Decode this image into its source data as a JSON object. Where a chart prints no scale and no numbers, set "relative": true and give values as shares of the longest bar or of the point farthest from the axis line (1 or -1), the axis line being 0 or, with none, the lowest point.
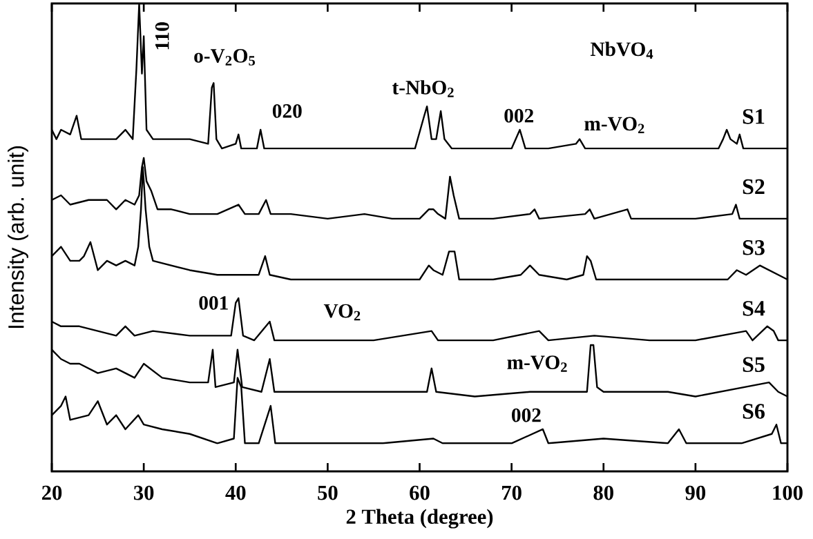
{
  "chart_data": {
    "type": "line",
    "relative": true,
    "xlabel": "2 Theta (degree)",
    "ylabel": "Intensity (arb. unit)",
    "xlim": [
      20,
      100
    ],
    "xticks": [
      20,
      30,
      40,
      50,
      60,
      70,
      80,
      90,
      100
    ],
    "annotations": [
      "110",
      "o-V$_{2}$O$_{5}$",
      "020",
      "t-NbO$_{2}$",
      "002",
      "m-VO$_{2}$",
      "NbVO$_{4}$",
      "001",
      "VO$_{2}$",
      "m-VO$_{2}$",
      "002"
    ],
    "series": [
      {
        "name": "S1",
        "color": "#000000",
        "x": [
          20,
          20.5,
          21,
          22,
          22.7,
          23.2,
          25,
          27,
          28,
          28.8,
          29.2,
          29.5,
          29.8,
          30.0,
          30.3,
          31,
          33,
          35,
          37,
          37.4,
          37.6,
          37.9,
          38.5,
          40.0,
          40.3,
          40.6,
          42.3,
          42.7,
          43.1,
          46,
          50,
          55,
          59.5,
          60.5,
          60.8,
          61.3,
          61.8,
          62.3,
          62.7,
          63.5,
          66,
          70,
          70.9,
          71.5,
          74,
          77,
          77.4,
          78,
          82,
          88,
          92.5,
          93.0,
          93.4,
          93.8,
          94.5,
          94.8,
          95.2,
          97,
          100
        ],
        "values": [
          0.73,
          0.71,
          0.73,
          0.72,
          0.76,
          0.71,
          0.71,
          0.71,
          0.73,
          0.71,
          0.86,
          1.0,
          0.85,
          0.93,
          0.73,
          0.71,
          0.71,
          0.71,
          0.7,
          0.82,
          0.83,
          0.71,
          0.69,
          0.7,
          0.72,
          0.69,
          0.69,
          0.73,
          0.69,
          0.69,
          0.69,
          0.69,
          0.69,
          0.76,
          0.78,
          0.71,
          0.71,
          0.77,
          0.71,
          0.69,
          0.69,
          0.69,
          0.73,
          0.69,
          0.69,
          0.7,
          0.71,
          0.69,
          0.69,
          0.69,
          0.69,
          0.71,
          0.73,
          0.71,
          0.7,
          0.72,
          0.69,
          0.69,
          0.69
        ]
      },
      {
        "name": "S2",
        "color": "#000000",
        "x": [
          20,
          21,
          22,
          24,
          26,
          27,
          28,
          29,
          29.5,
          29.8,
          30.0,
          30.3,
          30.8,
          31.5,
          33,
          35,
          38,
          40.3,
          41,
          42.5,
          43.3,
          43.8,
          46,
          50,
          54,
          57,
          60,
          61,
          61.5,
          62,
          62.8,
          63.3,
          63.7,
          64.3,
          68,
          72,
          72.5,
          73,
          78,
          78.5,
          79,
          82.6,
          83,
          90,
          94,
          94.4,
          94.8,
          100
        ],
        "values": [
          0.58,
          0.59,
          0.57,
          0.58,
          0.58,
          0.56,
          0.58,
          0.57,
          0.59,
          0.65,
          0.67,
          0.62,
          0.6,
          0.56,
          0.56,
          0.55,
          0.55,
          0.57,
          0.55,
          0.55,
          0.58,
          0.55,
          0.55,
          0.54,
          0.55,
          0.54,
          0.54,
          0.56,
          0.56,
          0.55,
          0.54,
          0.63,
          0.59,
          0.54,
          0.54,
          0.55,
          0.56,
          0.54,
          0.55,
          0.56,
          0.54,
          0.56,
          0.54,
          0.54,
          0.55,
          0.57,
          0.54,
          0.54
        ]
      },
      {
        "name": "S3",
        "color": "#000000",
        "x": [
          20,
          21,
          22,
          23,
          23.5,
          24.2,
          25,
          26,
          27,
          28,
          29,
          29.4,
          29.7,
          29.9,
          30.2,
          30.6,
          31,
          33,
          35,
          38,
          40,
          42.5,
          43.2,
          43.7,
          46,
          50,
          55,
          60,
          61,
          61.5,
          62.5,
          63.2,
          63.8,
          64.3,
          68,
          71,
          72,
          73,
          76,
          77.8,
          78.2,
          78.6,
          79.2,
          85,
          93.5,
          94.5,
          95.5,
          97,
          100
        ],
        "values": [
          0.46,
          0.48,
          0.45,
          0.45,
          0.46,
          0.49,
          0.43,
          0.45,
          0.44,
          0.45,
          0.44,
          0.48,
          0.56,
          0.65,
          0.56,
          0.48,
          0.45,
          0.44,
          0.43,
          0.42,
          0.42,
          0.42,
          0.46,
          0.42,
          0.41,
          0.41,
          0.41,
          0.41,
          0.44,
          0.43,
          0.42,
          0.47,
          0.47,
          0.41,
          0.41,
          0.42,
          0.44,
          0.42,
          0.41,
          0.42,
          0.46,
          0.45,
          0.41,
          0.41,
          0.41,
          0.43,
          0.42,
          0.44,
          0.41
        ]
      },
      {
        "name": "S4",
        "color": "#000000",
        "x": [
          20,
          21,
          23,
          25,
          27,
          28,
          29,
          31,
          35,
          37,
          39.5,
          40.0,
          40.3,
          40.8,
          42,
          43.7,
          44.2,
          48,
          55,
          61.3,
          62,
          68,
          73,
          74,
          79,
          85,
          90,
          95.5,
          96.2,
          97.8,
          98.5,
          99,
          100
        ],
        "values": [
          0.32,
          0.31,
          0.31,
          0.3,
          0.29,
          0.31,
          0.29,
          0.3,
          0.29,
          0.29,
          0.29,
          0.36,
          0.37,
          0.29,
          0.28,
          0.32,
          0.28,
          0.28,
          0.28,
          0.3,
          0.28,
          0.28,
          0.3,
          0.28,
          0.29,
          0.28,
          0.28,
          0.3,
          0.28,
          0.31,
          0.3,
          0.28,
          0.28
        ]
      },
      {
        "name": "S5",
        "color": "#000000",
        "x": [
          20,
          21,
          22,
          23,
          25,
          27,
          29,
          30,
          32,
          35,
          37,
          37.5,
          37.8,
          39.8,
          40.2,
          40.7,
          42.8,
          43.7,
          44.2,
          48,
          55,
          60.8,
          61.3,
          61.8,
          66,
          72,
          74,
          78.2,
          78.6,
          78.9,
          79.3,
          80,
          87,
          90,
          98,
          99,
          100
        ],
        "values": [
          0.26,
          0.24,
          0.23,
          0.23,
          0.21,
          0.22,
          0.2,
          0.23,
          0.2,
          0.19,
          0.19,
          0.26,
          0.18,
          0.19,
          0.26,
          0.18,
          0.17,
          0.24,
          0.17,
          0.17,
          0.17,
          0.17,
          0.22,
          0.17,
          0.16,
          0.17,
          0.17,
          0.17,
          0.27,
          0.27,
          0.18,
          0.17,
          0.17,
          0.16,
          0.19,
          0.17,
          0.16
        ]
      },
      {
        "name": "S6",
        "color": "#000000",
        "x": [
          20,
          21,
          21.5,
          22,
          24,
          25,
          26,
          27,
          28,
          29.4,
          30,
          32,
          35,
          38,
          39.8,
          40.2,
          40.6,
          41,
          42.5,
          43.8,
          44.3,
          50,
          56,
          61.5,
          62.5,
          70,
          73.4,
          74,
          80,
          87,
          88.2,
          89,
          95,
          98.3,
          98.8,
          99.3,
          100
        ],
        "values": [
          0.12,
          0.14,
          0.16,
          0.11,
          0.12,
          0.15,
          0.1,
          0.12,
          0.09,
          0.12,
          0.1,
          0.09,
          0.08,
          0.06,
          0.07,
          0.2,
          0.18,
          0.06,
          0.06,
          0.14,
          0.06,
          0.06,
          0.06,
          0.07,
          0.06,
          0.06,
          0.09,
          0.06,
          0.07,
          0.06,
          0.09,
          0.06,
          0.06,
          0.08,
          0.1,
          0.06,
          0.06
        ]
      }
    ]
  }
}
